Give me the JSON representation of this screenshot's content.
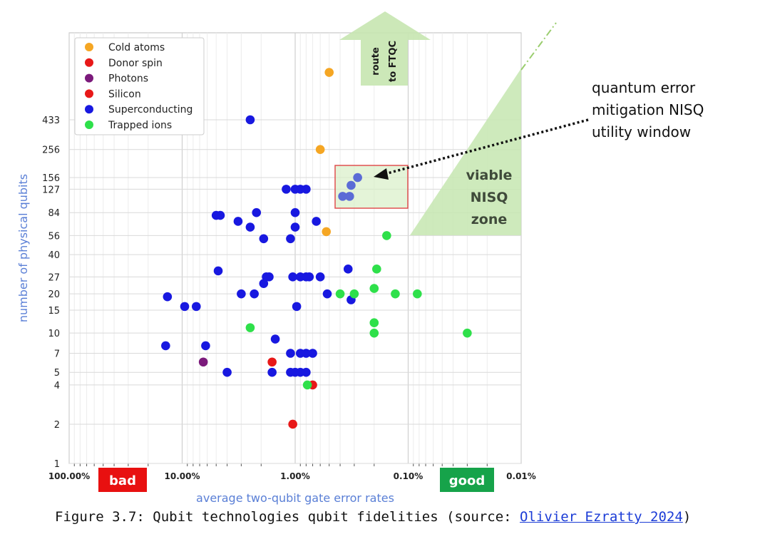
{
  "chart_data": {
    "type": "scatter",
    "xlabel": "average two-qubit gate error rates",
    "ylabel": "number of physical qubits",
    "x_scale": "log",
    "x_axis_reversed": true,
    "xlim": [
      "100.00%",
      "0.01%"
    ],
    "x_ticks": [
      "100.00%",
      "10.00%",
      "1.00%",
      "0.10%",
      "0.01%"
    ],
    "y_scale": "log",
    "y_ticks": [
      "1",
      "2",
      "4",
      "5",
      "7",
      "10",
      "15",
      "20",
      "27",
      "40",
      "56",
      "84",
      "127",
      "156",
      "256",
      "433"
    ],
    "grid": true,
    "legend_position": "top-left",
    "series": [
      {
        "name": "Cold atoms",
        "color": "#f5a623",
        "points": [
          [
            0.5,
            1000
          ],
          [
            0.6,
            256
          ],
          [
            0.53,
            60
          ]
        ]
      },
      {
        "name": "Donor spin",
        "color": "#e81818",
        "points": [
          [
            1.6,
            6
          ]
        ]
      },
      {
        "name": "Photons",
        "color": "#7b1a7b",
        "points": [
          [
            6.5,
            6
          ]
        ]
      },
      {
        "name": "Silicon",
        "color": "#e81818",
        "points": [
          [
            1.05,
            2
          ],
          [
            0.7,
            4
          ]
        ]
      },
      {
        "name": "Superconducting",
        "color": "#1818e0",
        "points": [
          [
            2.5,
            433
          ],
          [
            0.28,
            156
          ],
          [
            0.32,
            136
          ],
          [
            0.33,
            112
          ],
          [
            0.38,
            112
          ],
          [
            1.2,
            127
          ],
          [
            1.0,
            127
          ],
          [
            0.9,
            127
          ],
          [
            0.8,
            127
          ],
          [
            5.0,
            80
          ],
          [
            4.6,
            80
          ],
          [
            3.2,
            72
          ],
          [
            2.2,
            84
          ],
          [
            1.0,
            84
          ],
          [
            0.65,
            72
          ],
          [
            2.5,
            65
          ],
          [
            1.0,
            65
          ],
          [
            1.9,
            53
          ],
          [
            1.1,
            53
          ],
          [
            4.8,
            30
          ],
          [
            0.34,
            31
          ],
          [
            1.8,
            27
          ],
          [
            1.7,
            27
          ],
          [
            1.05,
            27
          ],
          [
            0.9,
            27
          ],
          [
            0.8,
            27
          ],
          [
            0.75,
            27
          ],
          [
            0.6,
            27
          ],
          [
            1.9,
            24
          ],
          [
            13.5,
            19
          ],
          [
            3.0,
            20
          ],
          [
            2.3,
            20
          ],
          [
            0.52,
            20
          ],
          [
            0.32,
            18
          ],
          [
            9.5,
            16
          ],
          [
            7.5,
            16
          ],
          [
            0.97,
            16
          ],
          [
            1.5,
            9
          ],
          [
            14.0,
            8
          ],
          [
            6.2,
            8
          ],
          [
            1.1,
            7
          ],
          [
            0.9,
            7
          ],
          [
            0.8,
            7
          ],
          [
            0.7,
            7
          ],
          [
            4.0,
            5
          ],
          [
            1.6,
            5
          ],
          [
            1.1,
            5
          ],
          [
            1.0,
            5
          ],
          [
            0.9,
            5
          ],
          [
            0.8,
            5
          ]
        ]
      },
      {
        "name": "Trapped ions",
        "color": "#2ee04a",
        "points": [
          [
            0.155,
            56
          ],
          [
            0.19,
            31
          ],
          [
            0.2,
            22
          ],
          [
            0.13,
            20
          ],
          [
            0.083,
            20
          ],
          [
            0.3,
            20
          ],
          [
            0.4,
            20
          ],
          [
            0.2,
            12
          ],
          [
            0.2,
            10
          ],
          [
            0.03,
            10
          ],
          [
            2.5,
            11
          ],
          [
            0.78,
            4
          ]
        ]
      }
    ],
    "annotations": {
      "route": [
        "route",
        "to FTQC"
      ],
      "viable_zone": [
        "viable",
        "NISQ",
        "zone"
      ],
      "utility_window": [
        "quantum error",
        "mitigation NISQ",
        "utility window"
      ],
      "bad": "bad",
      "good": "good"
    }
  },
  "caption": {
    "prefix": "Figure 3.7: Qubit technologies qubit fidelities (source: ",
    "link": "Olivier Ezratty 2024",
    "suffix": ")"
  },
  "colors": {
    "bad": "#e81010",
    "good": "#16a34a",
    "zone_fill": "#c6e6b0",
    "window_border": "#e05050",
    "axis_label": "#5a7fd6"
  }
}
